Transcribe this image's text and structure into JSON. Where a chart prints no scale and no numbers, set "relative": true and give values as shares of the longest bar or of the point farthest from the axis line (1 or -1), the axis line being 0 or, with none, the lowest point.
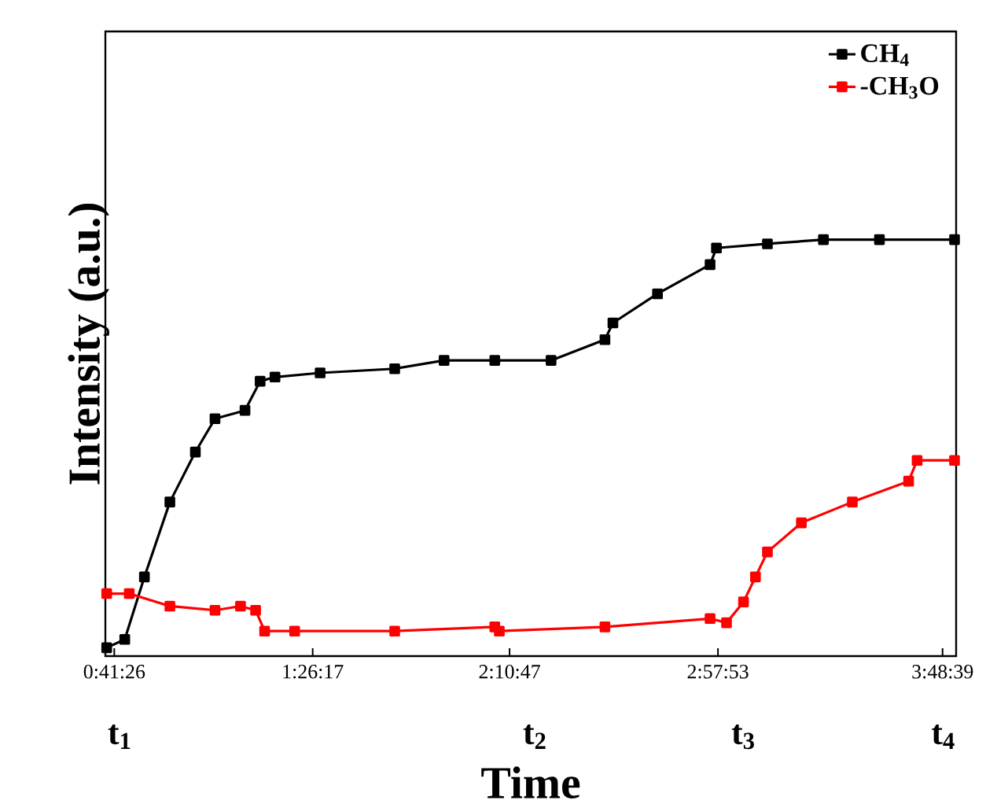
{
  "chart_data": {
    "type": "line",
    "xlabel": "Time",
    "ylabel": "Intensity (a.u.)",
    "relative": true,
    "xlim": [
      0.657,
      3.862
    ],
    "xticks": [
      {
        "value": 0.69056,
        "label": "0:41:26"
      },
      {
        "value": 1.43806,
        "label": "1:26:17"
      },
      {
        "value": 2.17972,
        "label": "2:10:47"
      },
      {
        "value": 2.96472,
        "label": "2:57:53"
      },
      {
        "value": 3.81083,
        "label": "3:48:39"
      }
    ],
    "series": [
      {
        "name": "CH$_{4}$",
        "color": "#000000",
        "x": [
          0.662,
          0.73,
          0.804,
          0.9,
          0.996,
          1.07,
          1.183,
          1.24,
          1.296,
          1.466,
          1.747,
          1.933,
          2.124,
          2.336,
          2.539,
          2.569,
          2.737,
          2.935,
          2.959,
          3.151,
          3.362,
          3.573,
          3.856
        ],
        "values": [
          0.02,
          0.04,
          0.19,
          0.37,
          0.49,
          0.57,
          0.59,
          0.66,
          0.67,
          0.68,
          0.69,
          0.71,
          0.71,
          0.71,
          0.76,
          0.8,
          0.87,
          0.94,
          0.98,
          0.99,
          1.0,
          1.0,
          1.0
        ]
      },
      {
        "name": "-CH$_{3}$O",
        "color": "#ff0000",
        "x": [
          0.662,
          0.747,
          0.9,
          1.07,
          1.166,
          1.223,
          1.257,
          1.37,
          1.747,
          2.124,
          2.141,
          2.539,
          2.935,
          2.997,
          3.061,
          3.106,
          3.151,
          3.279,
          3.471,
          3.683,
          3.715,
          3.856
        ],
        "values": [
          0.15,
          0.15,
          0.12,
          0.11,
          0.12,
          0.11,
          0.06,
          0.06,
          0.06,
          0.07,
          0.06,
          0.07,
          0.09,
          0.08,
          0.13,
          0.19,
          0.25,
          0.32,
          0.37,
          0.42,
          0.47,
          0.47
        ]
      }
    ],
    "annotations": [
      "t$_{1}$",
      "t$_{2}$",
      "t$_{3}$",
      "t$_{4}$"
    ],
    "marker": "square",
    "legend": "top right",
    "grid": false
  }
}
